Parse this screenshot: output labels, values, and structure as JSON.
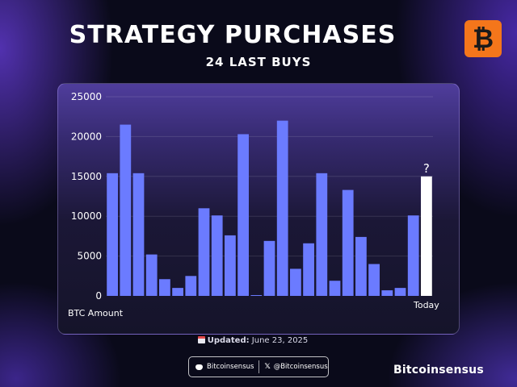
{
  "header": {
    "title": "STRATEGY PURCHASES",
    "subtitle": "24 LAST BUYS",
    "logo_glyph": "₿",
    "logo_color": "#f4761b"
  },
  "chart_data": {
    "type": "bar",
    "title": "STRATEGY PURCHASES",
    "subtitle": "24 LAST BUYS",
    "xlabel": "BTC Amount",
    "ylabel": "",
    "ylim": [
      0,
      25000
    ],
    "yticks": [
      0,
      5000,
      10000,
      15000,
      20000,
      25000
    ],
    "grid": true,
    "values": [
      15400,
      21500,
      15400,
      5200,
      2100,
      1000,
      2500,
      11000,
      10100,
      7600,
      20300,
      100,
      6900,
      22000,
      3400,
      6600,
      15400,
      1900,
      13300,
      7400,
      4000,
      700,
      1000,
      10100,
      15000
    ],
    "bar_color": "#6b7bff",
    "last_label": "Today",
    "last_annotation": "?",
    "last_color": "#ffffff"
  },
  "footer": {
    "updated_label": "Updated:",
    "updated_date": "June 23, 2025",
    "discord_handle": "Bitcoinsensus",
    "x_handle": "@Bitcoinsensus",
    "x_glyph": "𝕏",
    "brand": "Bitcoinsensus"
  }
}
